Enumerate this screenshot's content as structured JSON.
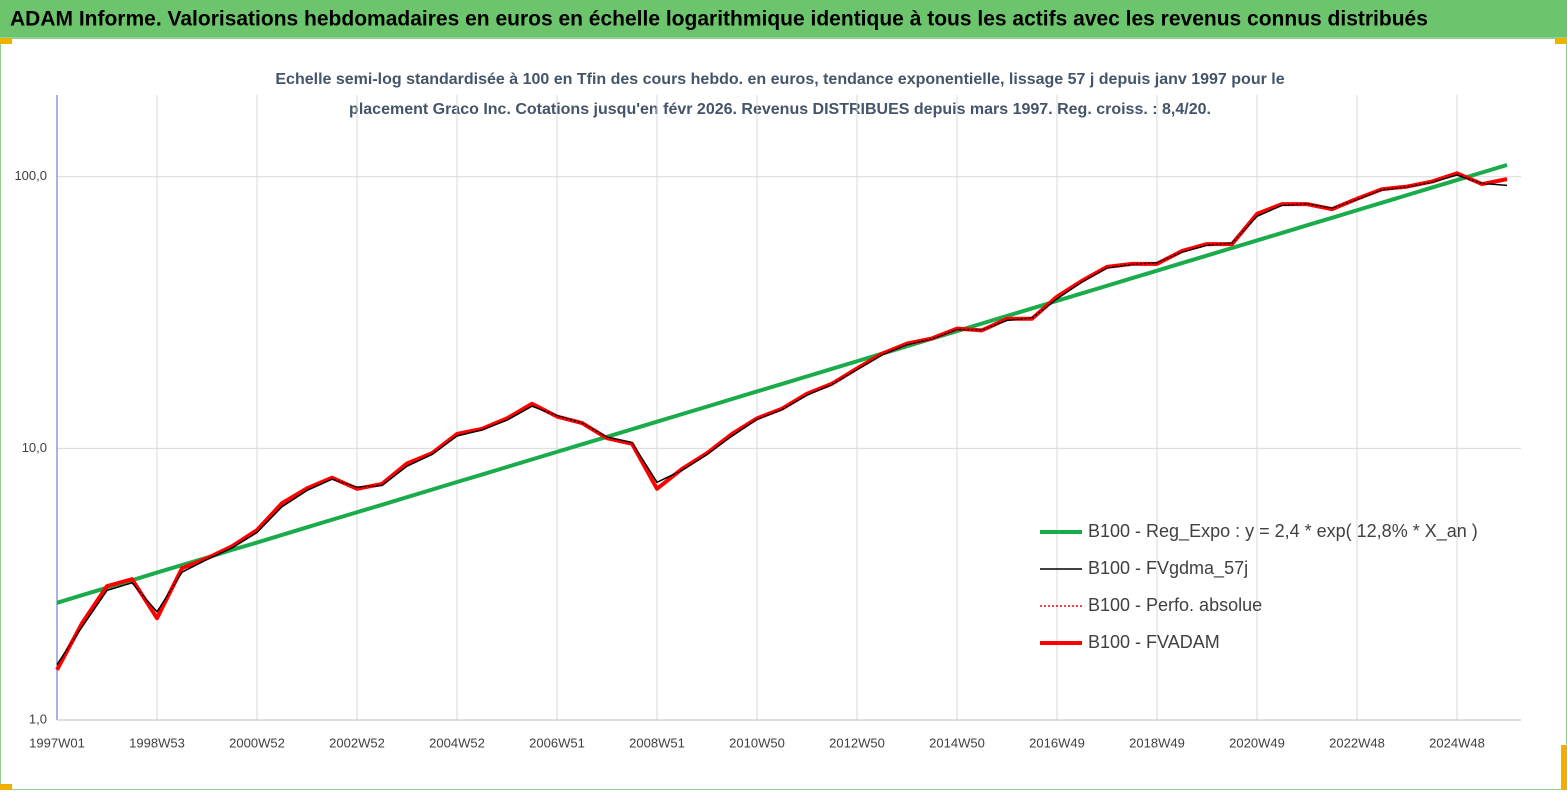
{
  "header": "ADAM Informe. Valorisations hebdomadaires en euros en échelle logarithmique identique à tous les actifs avec les revenus connus distribués",
  "chart_data": {
    "type": "line",
    "subtitle": [
      "Echelle semi-log standardisée à 100 en Tfin des cours hebdo. en euros, tendance exponentielle, lissage 57 j depuis janv 1997 pour le",
      "placement Graco Inc. Cotations jusqu'en févr 2026. Revenus DISTRIBUES depuis mars 1997. Reg. croiss. : 8,4/20."
    ],
    "categories": [
      "1997W01",
      null,
      null,
      null,
      "1998W53",
      null,
      null,
      null,
      "2000W52",
      null,
      null,
      null,
      "2002W52",
      null,
      null,
      null,
      "2004W52",
      null,
      null,
      null,
      "2006W51",
      null,
      null,
      null,
      "2008W51",
      null,
      null,
      null,
      "2010W50",
      null,
      null,
      null,
      "2012W50",
      null,
      null,
      null,
      "2014W50",
      null,
      null,
      null,
      "2016W49",
      null,
      null,
      null,
      "2018W49",
      null,
      null,
      null,
      "2020W49",
      null,
      null,
      null,
      "2022W48",
      null,
      null,
      null,
      "2024W48",
      null,
      null
    ],
    "log_scale": true,
    "grid": true,
    "legend_position": "lower right",
    "ylim": [
      1,
      200
    ],
    "yticks": [
      {
        "value": 1,
        "label": "1,0"
      },
      {
        "value": 10,
        "label": "10,0"
      },
      {
        "value": 100,
        "label": "100,0"
      }
    ],
    "series": [
      {
        "name": "B100 - Reg_Expo : y = 2,4 * exp( 12,8% *  X_an )",
        "color": "#1aab4b",
        "style": "thick",
        "values": [
          2.7,
          2.88,
          3.07,
          3.27,
          3.49,
          3.72,
          3.96,
          4.23,
          4.5,
          4.8,
          5.12,
          5.46,
          5.82,
          6.2,
          6.61,
          7.05,
          7.52,
          8.01,
          8.54,
          9.11,
          9.71,
          10.35,
          11.03,
          11.76,
          12.54,
          13.37,
          14.25,
          15.2,
          16.2,
          17.27,
          18.41,
          19.63,
          20.93,
          22.31,
          23.78,
          25.36,
          27.03,
          28.82,
          30.73,
          32.76,
          34.92,
          37.23,
          39.69,
          42.32,
          45.11,
          48.1,
          51.28,
          54.67,
          58.28,
          62.13,
          66.24,
          70.62,
          75.29,
          80.27,
          85.57,
          91.23,
          97.26,
          103.7,
          110.5
        ]
      },
      {
        "name": "B100 - FVgdma_57j",
        "color": "#000000",
        "style": "thin",
        "values": [
          1.6,
          2.2,
          3.0,
          3.2,
          2.5,
          3.5,
          3.9,
          4.3,
          4.9,
          6.1,
          7.0,
          7.7,
          7.2,
          7.3,
          8.6,
          9.5,
          11.1,
          11.7,
          12.7,
          14.3,
          13.2,
          12.4,
          11.0,
          10.5,
          7.5,
          8.3,
          9.5,
          11.1,
          12.8,
          13.9,
          15.7,
          17.2,
          19.5,
          22.1,
          24.1,
          25.3,
          27.4,
          27.3,
          29.6,
          30.2,
          35.5,
          41.0,
          46.2,
          47.6,
          48.2,
          52.8,
          56.0,
          57.0,
          71.5,
          78.5,
          79.5,
          76.5,
          82.5,
          89.5,
          91.8,
          95.5,
          101.5,
          94.5,
          93.0
        ]
      },
      {
        "name": "B100 - Perfo. absolue",
        "color": "#ff0000",
        "style": "dotted",
        "values": [
          1.53,
          2.27,
          3.11,
          3.3,
          2.37,
          3.62,
          3.94,
          4.36,
          5.0,
          6.28,
          7.13,
          7.8,
          7.1,
          7.4,
          8.8,
          9.6,
          11.3,
          11.8,
          12.9,
          14.6,
          13.1,
          12.4,
          10.9,
          10.4,
          7.1,
          8.4,
          9.6,
          11.3,
          12.9,
          14.0,
          15.9,
          17.3,
          19.7,
          22.3,
          24.3,
          25.4,
          27.6,
          27.2,
          30.0,
          30.0,
          36.2,
          41.4,
          46.6,
          47.8,
          47.8,
          53.3,
          56.5,
          56.5,
          73.0,
          79.3,
          79.3,
          76.0,
          83.0,
          90.0,
          92.0,
          96.0,
          103.0,
          94.0,
          98.0
        ]
      },
      {
        "name": "B100 - FVADAM",
        "color": "#ff0000",
        "style": "thick",
        "values": [
          1.53,
          2.27,
          3.11,
          3.3,
          2.37,
          3.62,
          3.94,
          4.36,
          5.0,
          6.28,
          7.13,
          7.8,
          7.1,
          7.4,
          8.8,
          9.6,
          11.3,
          11.8,
          12.9,
          14.6,
          13.1,
          12.4,
          10.9,
          10.4,
          7.1,
          8.4,
          9.6,
          11.3,
          12.9,
          14.0,
          15.9,
          17.3,
          19.7,
          22.3,
          24.3,
          25.4,
          27.6,
          27.2,
          30.0,
          30.0,
          36.2,
          41.4,
          46.6,
          47.8,
          47.8,
          53.3,
          56.5,
          56.5,
          73.0,
          79.3,
          79.3,
          76.0,
          83.0,
          90.0,
          92.0,
          96.0,
          103.0,
          94.0,
          98.0
        ]
      }
    ]
  }
}
